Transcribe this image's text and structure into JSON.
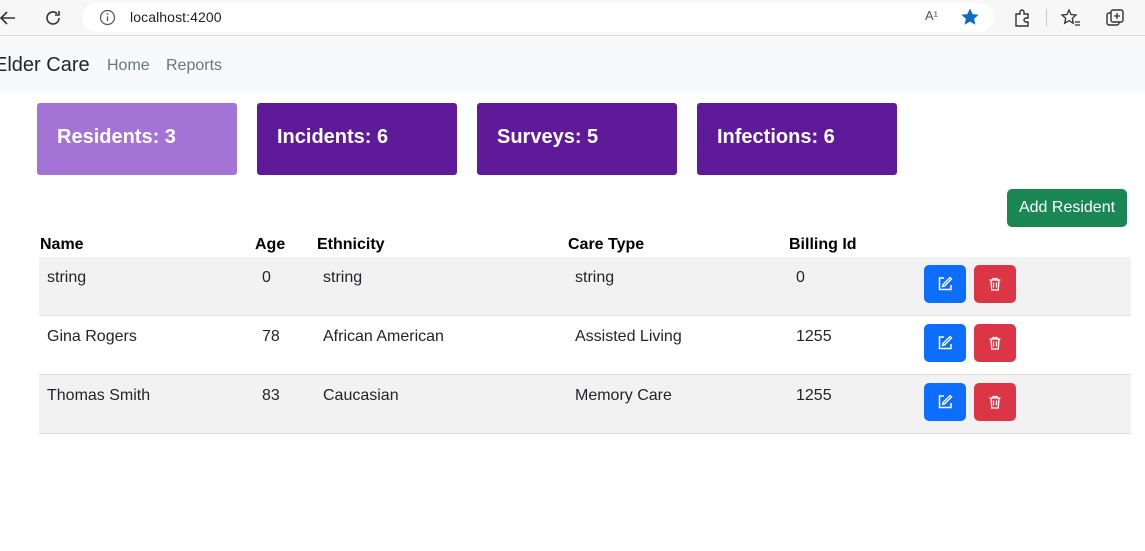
{
  "browser": {
    "url": "localhost:4200",
    "read_aloud_glyph": "A¹"
  },
  "navbar": {
    "brand": "Elder Care",
    "links": [
      "Home",
      "Reports"
    ]
  },
  "stats": [
    {
      "label": "Residents: 3",
      "color": "#a374d5"
    },
    {
      "label": "Incidents: 6",
      "color": "#5e1a99"
    },
    {
      "label": "Surveys: 5",
      "color": "#5e1a99"
    },
    {
      "label": "Infections: 6",
      "color": "#5e1a99"
    }
  ],
  "actions": {
    "add_resident": "Add Resident"
  },
  "table": {
    "headers": [
      "Name",
      "Age",
      "Ethnicity",
      "Care Type",
      "Billing Id"
    ],
    "rows": [
      [
        "string",
        "0",
        "string",
        "string",
        "0"
      ],
      [
        "Gina Rogers",
        "78",
        "African American",
        "Assisted Living",
        "1255"
      ],
      [
        "Thomas Smith",
        "83",
        "Caucasian",
        "Memory Care",
        "1255"
      ]
    ]
  },
  "colors": {
    "edit": "#0d6efd",
    "delete": "#dc3545",
    "add": "#198754",
    "star": "#0f6cbd"
  }
}
